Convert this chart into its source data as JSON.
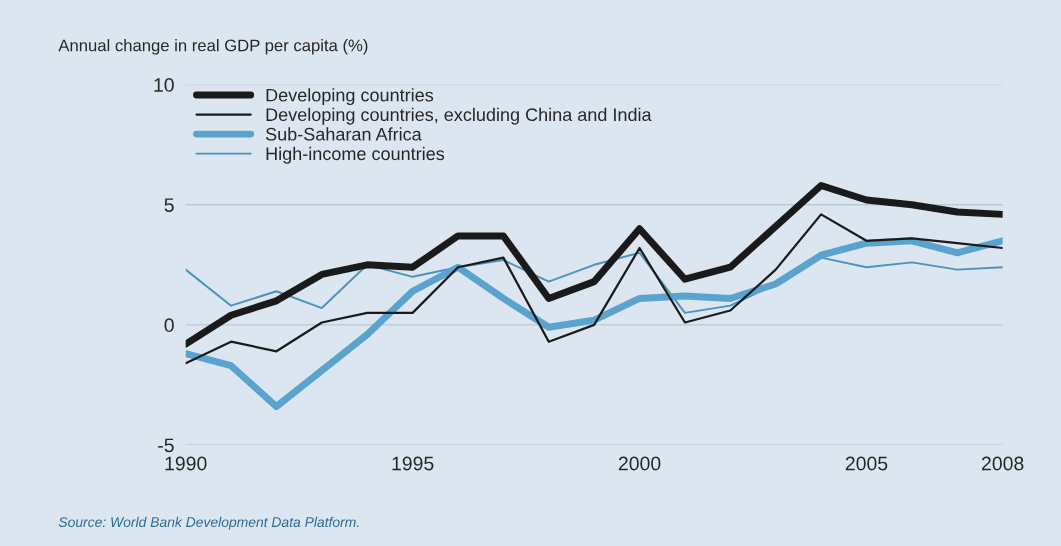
{
  "chart_data": {
    "type": "line",
    "ylabel": "Annual change in real GDP per capita (%)",
    "x": [
      1990,
      1991,
      1992,
      1993,
      1994,
      1995,
      1996,
      1997,
      1998,
      1999,
      2000,
      2001,
      2002,
      2003,
      2004,
      2005,
      2006,
      2007,
      2008
    ],
    "series": [
      {
        "name": "Developing countries",
        "color": "#1a1a1a",
        "values": [
          -0.8,
          0.4,
          1.0,
          2.1,
          2.5,
          2.4,
          3.7,
          3.7,
          1.1,
          1.8,
          4.0,
          1.9,
          2.4,
          4.1,
          5.8,
          5.2,
          5.0,
          4.7,
          4.6
        ]
      },
      {
        "name": "Developing countries, excluding China and India",
        "color": "#1a1a1a",
        "values": [
          -1.6,
          -0.7,
          -1.1,
          0.1,
          0.5,
          0.5,
          2.4,
          2.8,
          -0.7,
          0.0,
          3.2,
          0.1,
          0.6,
          2.3,
          4.6,
          3.5,
          3.6,
          3.4,
          3.2
        ]
      },
      {
        "name": "Sub-Saharan Africa",
        "color": "#5ba3cf",
        "values": [
          -1.2,
          -1.7,
          -3.4,
          -1.9,
          -0.4,
          1.4,
          2.4,
          1.1,
          -0.1,
          0.2,
          1.1,
          1.2,
          1.1,
          1.7,
          2.9,
          3.4,
          3.5,
          3.0,
          3.5
        ]
      },
      {
        "name": "High-income countries",
        "color": "#4b93bd",
        "values": [
          2.3,
          0.8,
          1.4,
          0.7,
          2.5,
          2.0,
          2.4,
          2.7,
          1.8,
          2.5,
          3.0,
          0.5,
          0.8,
          1.7,
          2.8,
          2.4,
          2.6,
          2.3,
          2.4
        ]
      }
    ],
    "xlim": [
      1990,
      2008
    ],
    "xticks": [
      1990,
      1995,
      2000,
      2005,
      2008
    ],
    "ylim": [
      -5,
      10
    ],
    "yticks": [
      -5,
      0,
      5,
      10
    ],
    "grid": "y",
    "legend": "top left",
    "annotations": [
      "Source: World Bank Development Data Platform."
    ]
  }
}
